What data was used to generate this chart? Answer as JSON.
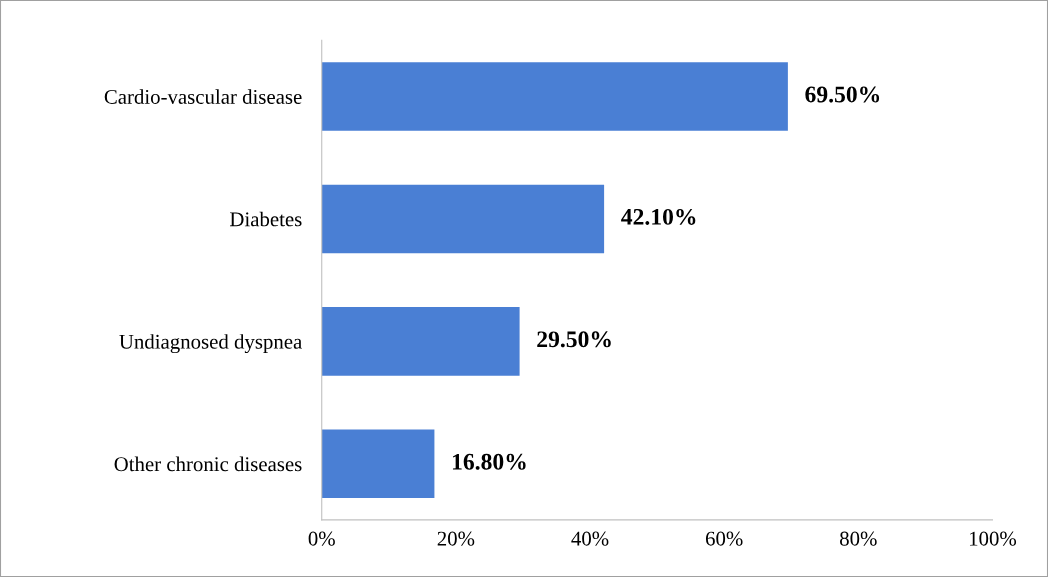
{
  "chart_data": {
    "type": "bar",
    "orientation": "horizontal",
    "categories": [
      "Cardio-vascular disease",
      "Diabetes",
      "Undiagnosed dyspnea",
      "Other chronic diseases"
    ],
    "values": [
      69.5,
      42.1,
      29.5,
      16.8
    ],
    "value_labels": [
      "69.50%",
      "42.10%",
      "29.50%",
      "16.80%"
    ],
    "color": "#4a7fd4",
    "xlim": [
      0,
      100
    ],
    "xticks": [
      {
        "value": 0,
        "label": "0%"
      },
      {
        "value": 20,
        "label": "20%"
      },
      {
        "value": 40,
        "label": "40%"
      },
      {
        "value": 60,
        "label": "60%"
      },
      {
        "value": 80,
        "label": "80%"
      },
      {
        "value": 100,
        "label": "100%"
      }
    ],
    "grid": false,
    "legend": false
  }
}
